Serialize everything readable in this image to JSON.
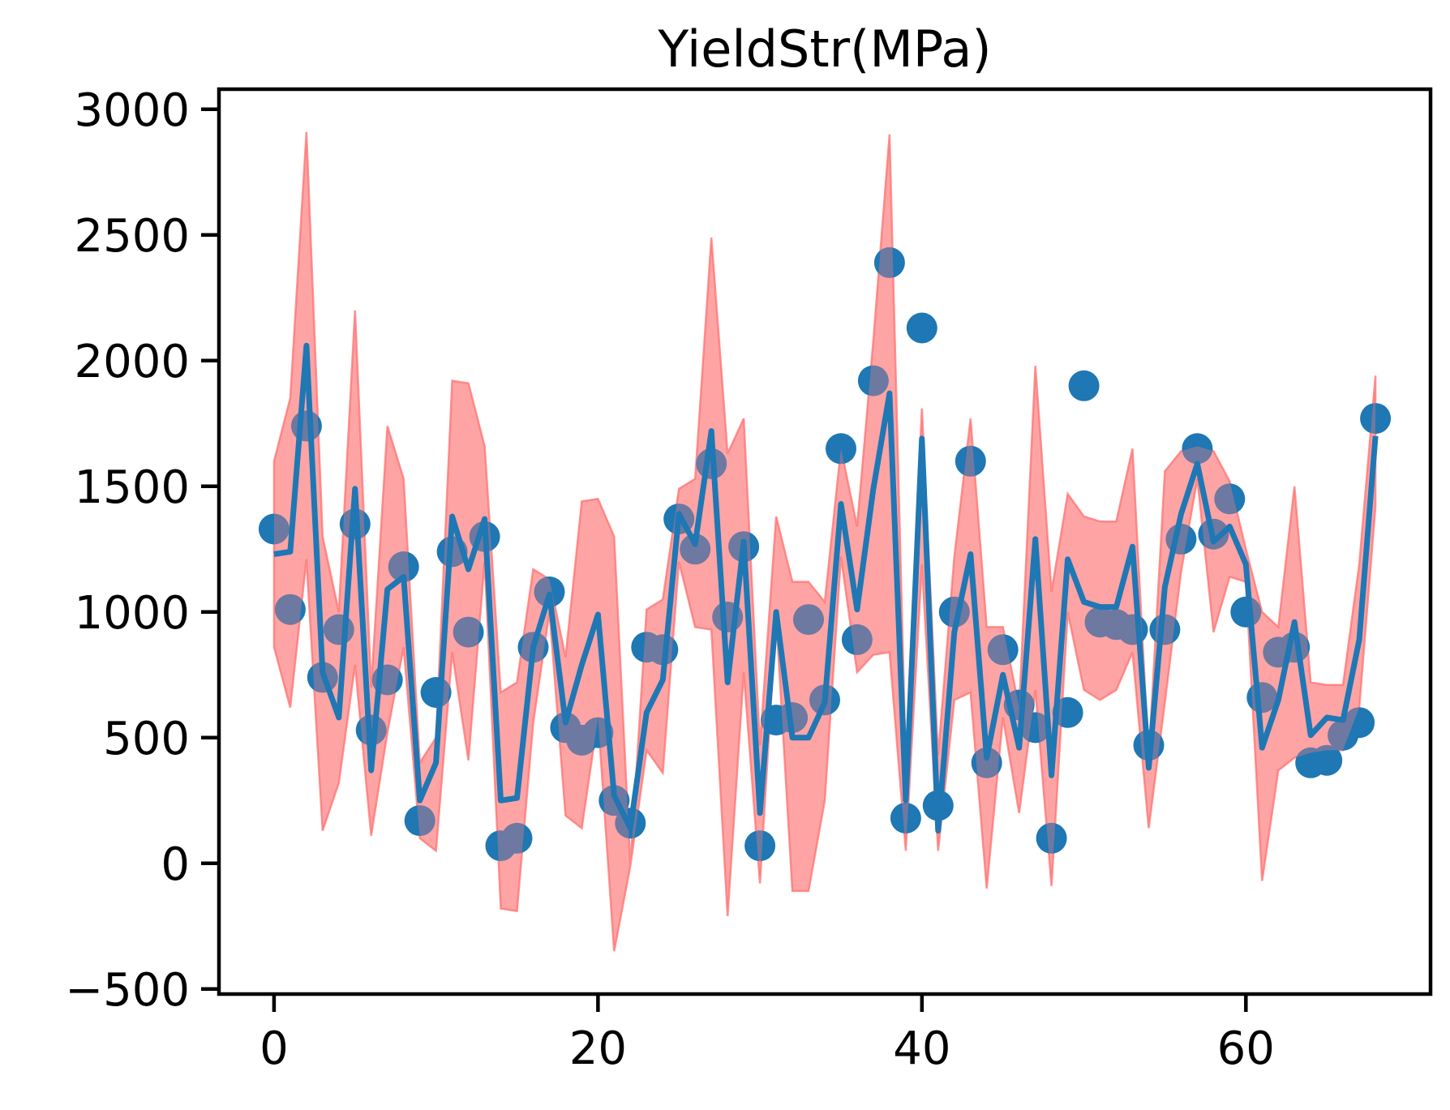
{
  "chart_data": {
    "type": "scatter",
    "title": "YieldStr(MPa)",
    "xlabel": "",
    "ylabel": "",
    "xlim": [
      -3.4,
      71.4
    ],
    "ylim": [
      -520,
      3080
    ],
    "xticks": [
      0,
      20,
      40,
      60
    ],
    "xtick_labels": [
      "0",
      "20",
      "40",
      "60"
    ],
    "yticks": [
      -500,
      0,
      500,
      1000,
      1500,
      2000,
      2500,
      3000
    ],
    "ytick_labels": [
      "−500",
      "0",
      "500",
      "1000",
      "1500",
      "2000",
      "2500",
      "3000"
    ],
    "grid": false,
    "legend": "none",
    "colors": {
      "points": "#1f77b4",
      "line": "#1f77b4",
      "band": "#ff7f7f",
      "band_edge": "#ff6666"
    },
    "x": [
      0,
      1,
      2,
      3,
      4,
      5,
      6,
      7,
      8,
      9,
      10,
      11,
      12,
      13,
      14,
      15,
      16,
      17,
      18,
      19,
      20,
      21,
      22,
      23,
      24,
      25,
      26,
      27,
      28,
      29,
      30,
      31,
      32,
      33,
      34,
      35,
      36,
      37,
      38,
      39,
      40,
      41,
      42,
      43,
      44,
      45,
      46,
      47,
      48,
      49,
      50,
      51,
      52,
      53,
      54,
      55,
      56,
      57,
      58,
      59,
      60,
      61,
      62,
      63,
      64,
      65,
      66,
      67,
      68
    ],
    "series": [
      {
        "kind": "points",
        "values": [
          1330,
          1010,
          1740,
          740,
          930,
          1350,
          530,
          730,
          1180,
          170,
          680,
          1240,
          920,
          1300,
          70,
          100,
          860,
          1080,
          540,
          490,
          520,
          250,
          160,
          860,
          850,
          1370,
          1250,
          1590,
          980,
          1260,
          70,
          570,
          580,
          970,
          650,
          1650,
          890,
          1920,
          2390,
          180,
          2130,
          230,
          1000,
          1600,
          400,
          850,
          630,
          540,
          100,
          600,
          1900,
          960,
          950,
          930,
          470,
          930,
          1290,
          1650,
          1310,
          1450,
          1000,
          660,
          840,
          860,
          400,
          410,
          510,
          560,
          1770
        ]
      },
      {
        "kind": "line",
        "values": [
          1230,
          1240,
          2060,
          760,
          580,
          1490,
          370,
          1090,
          1140,
          250,
          400,
          1380,
          1170,
          1370,
          250,
          260,
          860,
          1070,
          560,
          790,
          990,
          270,
          140,
          600,
          730,
          1390,
          1270,
          1720,
          720,
          1280,
          200,
          1000,
          500,
          500,
          640,
          1430,
          1010,
          1490,
          1870,
          250,
          1690,
          130,
          920,
          1230,
          420,
          750,
          460,
          1290,
          350,
          1210,
          1040,
          1020,
          1020,
          1260,
          380,
          1100,
          1390,
          1590,
          1280,
          1340,
          1190,
          460,
          650,
          960,
          510,
          580,
          570,
          890,
          1700
        ]
      },
      {
        "kind": "band_upper",
        "values": [
          1600,
          1850,
          2910,
          1300,
          1000,
          2200,
          700,
          1740,
          1530,
          400,
          500,
          1920,
          1910,
          1660,
          680,
          720,
          1170,
          1130,
          820,
          1440,
          1450,
          1300,
          -10,
          1010,
          1050,
          1490,
          1530,
          2490,
          1630,
          1770,
          470,
          1380,
          1120,
          1120,
          1040,
          1650,
          1340,
          2080,
          2900,
          410,
          1810,
          430,
          1220,
          1770,
          940,
          940,
          620,
          1980,
          1080,
          1470,
          1380,
          1360,
          1360,
          1650,
          420,
          1560,
          1640,
          1660,
          1640,
          1520,
          1250,
          1000,
          940,
          1500,
          720,
          710,
          710,
          1190,
          1940
        ]
      },
      {
        "kind": "band_lower",
        "values": [
          860,
          620,
          1210,
          130,
          320,
          790,
          110,
          520,
          860,
          100,
          50,
          840,
          410,
          1200,
          -180,
          -190,
          560,
          1000,
          190,
          140,
          580,
          -350,
          -10,
          450,
          360,
          1200,
          940,
          930,
          -210,
          760,
          -80,
          980,
          -110,
          -110,
          250,
          1220,
          760,
          830,
          840,
          50,
          1190,
          50,
          650,
          680,
          -100,
          580,
          200,
          690,
          -90,
          1000,
          690,
          650,
          690,
          840,
          140,
          640,
          1160,
          1530,
          920,
          1140,
          1120,
          -70,
          370,
          420,
          440,
          450,
          450,
          620,
          1420
        ]
      }
    ]
  }
}
